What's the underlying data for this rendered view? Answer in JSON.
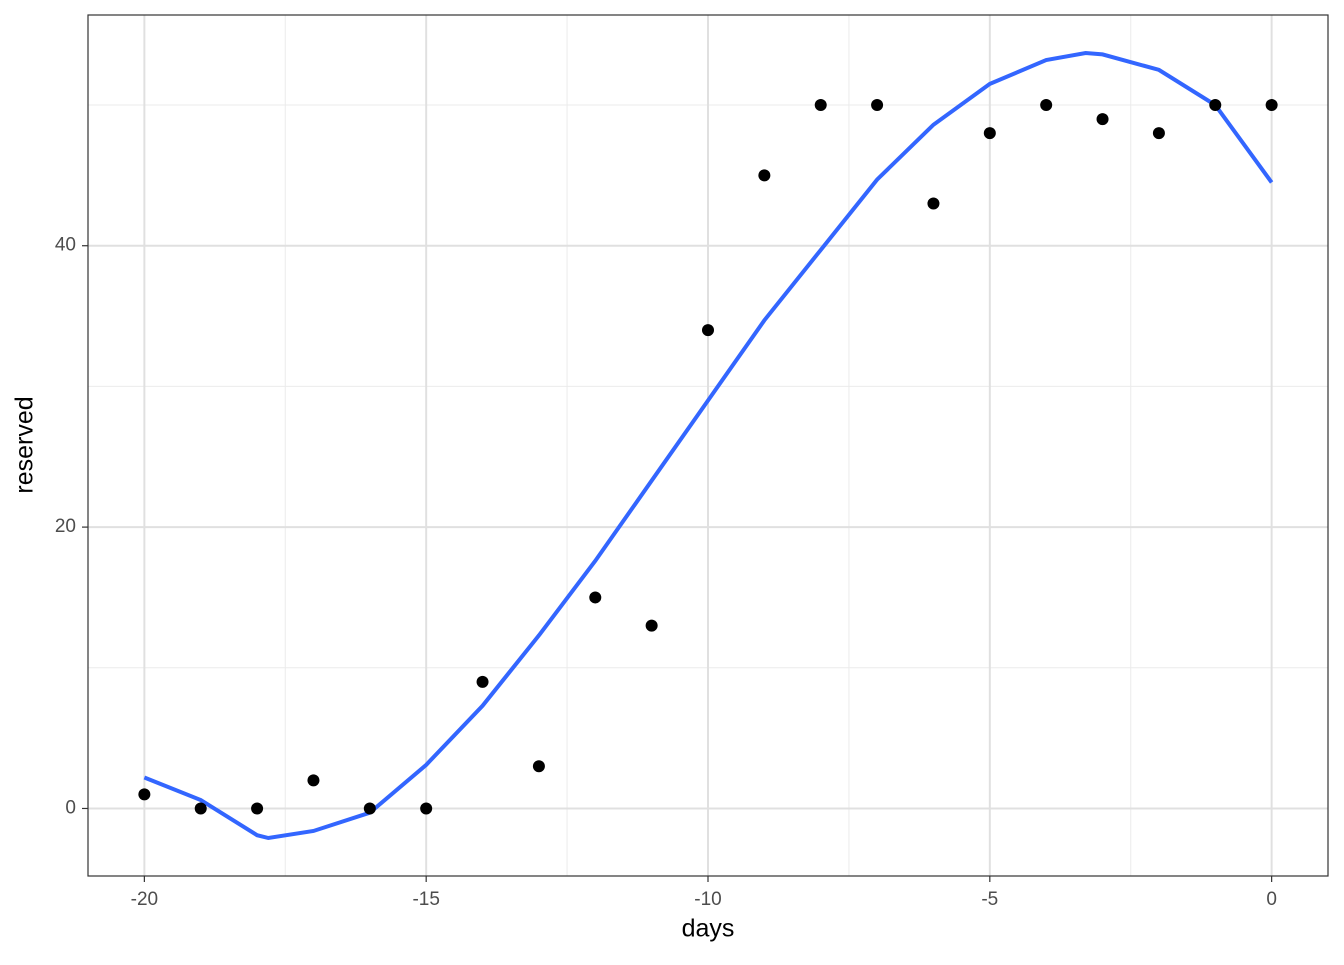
{
  "chart_data": {
    "type": "scatter",
    "x_label": "days",
    "y_label": "reserved",
    "points": {
      "color": "#000000",
      "x": [
        -20,
        -19,
        -18,
        -17,
        -16,
        -15,
        -14,
        -13,
        -12,
        -11,
        -10,
        -9,
        -8,
        -7,
        -6,
        -5,
        -4,
        -3,
        -2,
        -1,
        0
      ],
      "values": [
        1,
        0,
        0,
        2,
        0,
        0,
        9,
        3,
        15,
        13,
        34,
        45,
        50,
        50,
        43,
        48,
        50,
        49,
        48,
        50,
        50
      ]
    },
    "smooth": {
      "color": "#3366ff",
      "x": [
        -20,
        -19,
        -18,
        -17.8,
        -17,
        -16,
        -15,
        -14,
        -13,
        -12,
        -11,
        -10,
        -9,
        -8,
        -7,
        -6,
        -5,
        -4,
        -3.3,
        -3,
        -2,
        -1,
        0
      ],
      "values": [
        2.2,
        0.6,
        -1.9,
        -2.1,
        -1.6,
        -0.3,
        3.1,
        7.3,
        12.3,
        17.6,
        23.3,
        29.0,
        34.7,
        39.7,
        44.7,
        48.6,
        51.5,
        53.2,
        53.7,
        53.6,
        52.5,
        50.0,
        44.5
      ]
    },
    "xlim": [
      -21,
      1
    ],
    "ylim": [
      -4.8,
      56.4
    ],
    "xticks": [
      -20,
      -15,
      -10,
      -5,
      0
    ],
    "yticks": [
      0,
      20,
      40
    ],
    "x_minor_grid": [
      -17.5,
      -12.5,
      -7.5,
      -2.5
    ],
    "y_minor_grid": [
      10,
      30,
      50
    ],
    "grid": true
  }
}
